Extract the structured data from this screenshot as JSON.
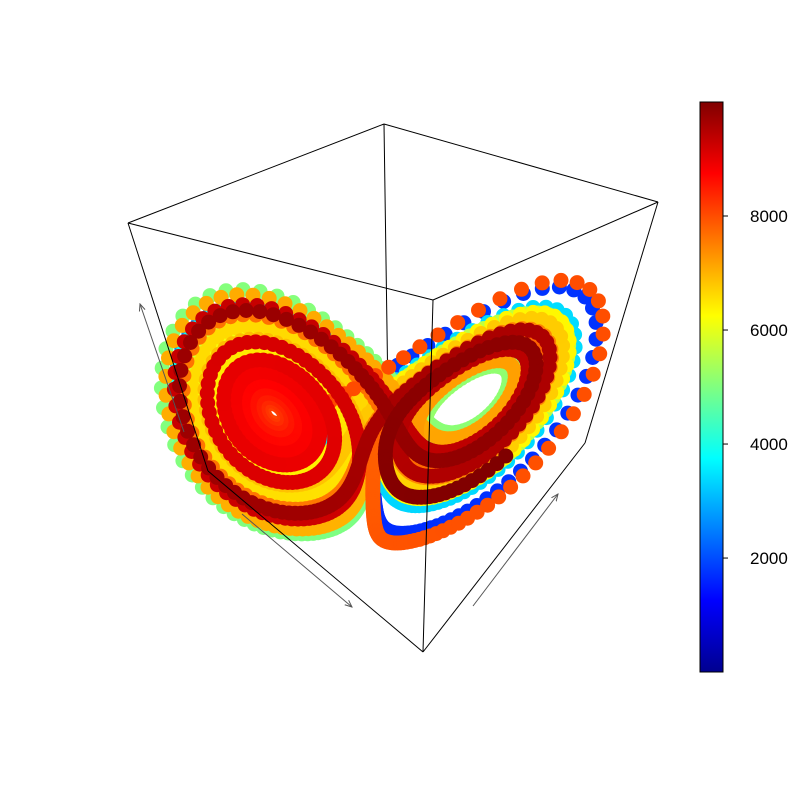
{
  "chart_data": {
    "type": "scatter",
    "title": "",
    "xlabel": "",
    "ylabel": "",
    "zlabel": "",
    "projection": "3d-box",
    "description_attractor": "lorenz",
    "color_variable_range": [
      1,
      10000
    ],
    "n_points": 10000,
    "colorbar": {
      "palette": "jet",
      "colors": [
        "#00008F",
        "#0000FF",
        "#0080FF",
        "#00FFFF",
        "#80FF80",
        "#FFFF00",
        "#FF8000",
        "#FF0000",
        "#800000"
      ],
      "ticks": [
        {
          "value": 2000,
          "label": "2000"
        },
        {
          "value": 4000,
          "label": "4000"
        },
        {
          "value": 6000,
          "label": "6000"
        },
        {
          "value": 8000,
          "label": "8000"
        }
      ],
      "range": [
        1,
        10000
      ]
    },
    "grid": false,
    "legend_position": "right"
  }
}
